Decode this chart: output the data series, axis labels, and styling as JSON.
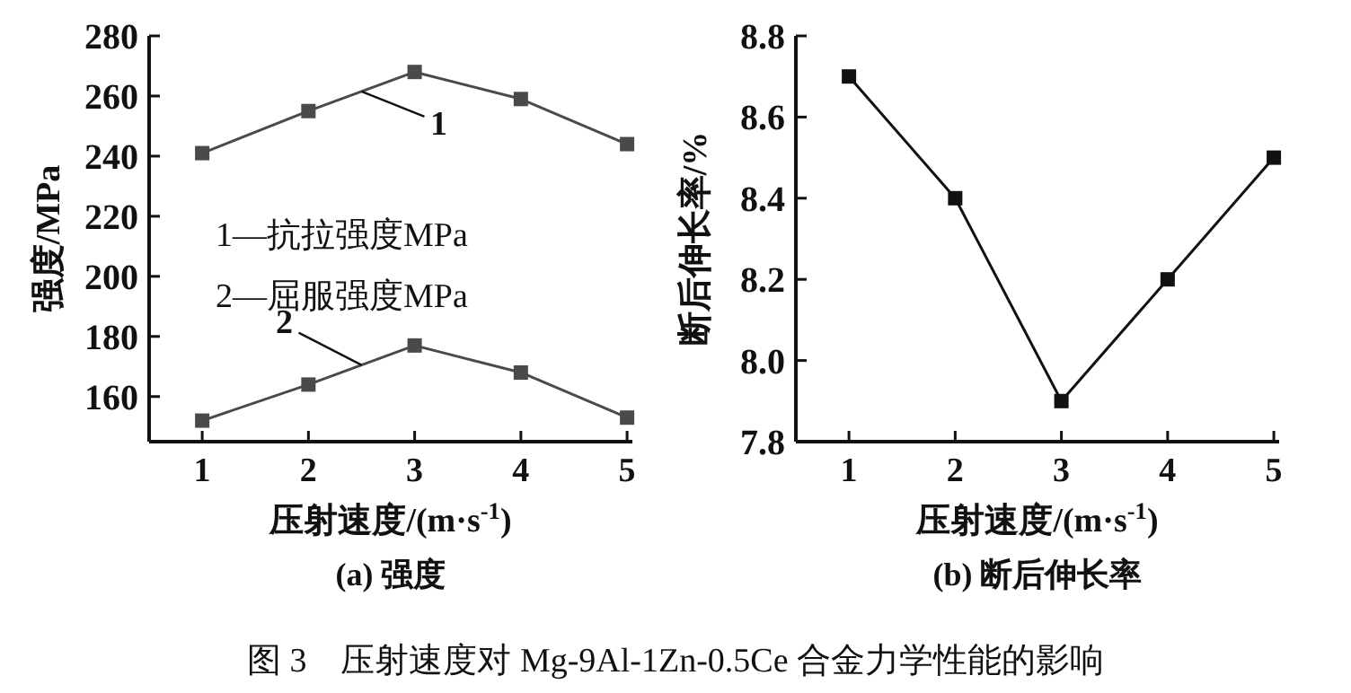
{
  "chart_data": [
    {
      "type": "line",
      "title": "(a) 强度",
      "xlabel": "压射速度/(m·s$^{-1}$)",
      "ylabel": "强度/MPa",
      "x": [
        1,
        2,
        3,
        4,
        5
      ],
      "xlim": [
        0.5,
        5.05
      ],
      "xticks": [
        1,
        2,
        3,
        4,
        5
      ],
      "ylim": [
        145,
        280
      ],
      "yticks": [
        160,
        180,
        200,
        220,
        240,
        260,
        280
      ],
      "marker": "square",
      "series": [
        {
          "name": "1",
          "color": "#4a4a4a",
          "values": [
            241,
            255,
            268,
            259,
            244
          ]
        },
        {
          "name": "2",
          "color": "#4a4a4a",
          "values": [
            152,
            164,
            177,
            168,
            153
          ]
        }
      ],
      "annotations": [
        "1—抗拉强度MPa",
        "2—屈服强度MPa",
        "图 3　压射速度对 Mg-9Al-1Zn-0.5Ce 合金力学性能的影响"
      ]
    },
    {
      "type": "line",
      "title": "(b) 断后伸长率",
      "xlabel": "压射速度/(m·s$^{-1}$)",
      "ylabel": "断后伸长率/%",
      "x": [
        1,
        2,
        3,
        4,
        5
      ],
      "xlim": [
        0.5,
        5.05
      ],
      "xticks": [
        1,
        2,
        3,
        4,
        5
      ],
      "ylim": [
        7.8,
        8.8
      ],
      "yticks": [
        7.8,
        {
          "value": 8,
          "label": "8.0"
        },
        8.2,
        8.4,
        8.6,
        8.8
      ],
      "marker": "square",
      "series": [
        {
          "color": "#111111",
          "values": [
            8.7,
            8.4,
            7.9,
            8.2,
            8.5
          ]
        }
      ]
    }
  ]
}
